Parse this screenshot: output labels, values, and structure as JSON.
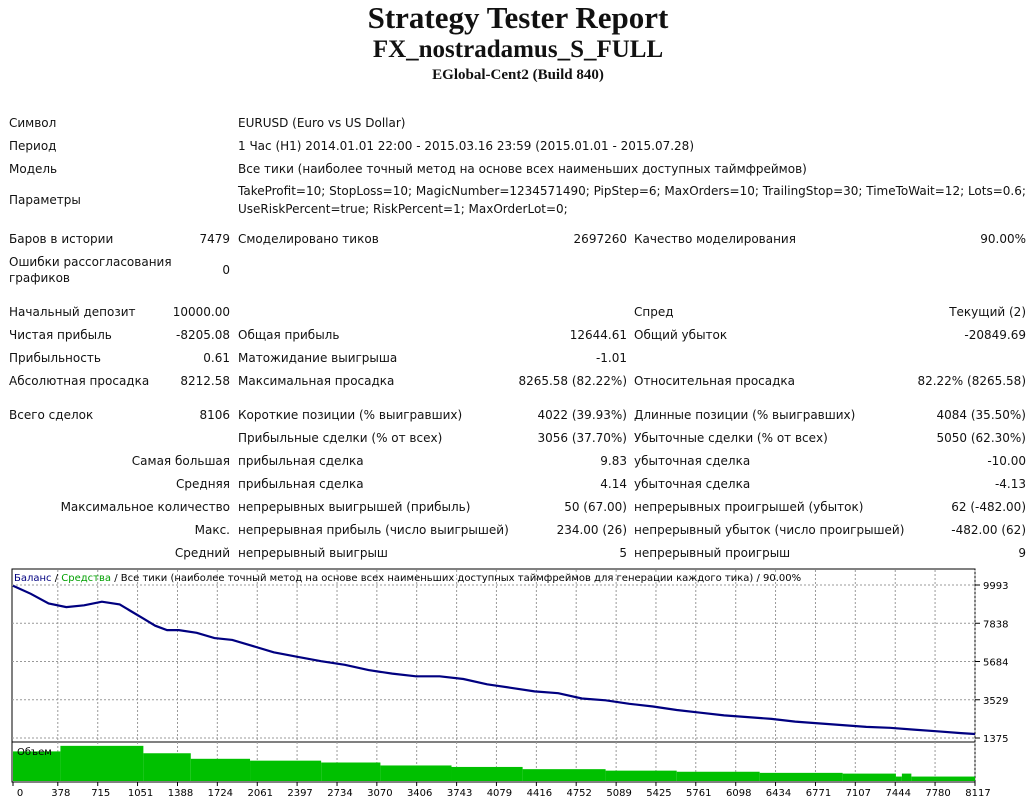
{
  "header": {
    "title": "Strategy Tester Report",
    "expert": "FX_nostradamus_S_FULL",
    "server": "EGlobal-Cent2 (Build 840)"
  },
  "info": {
    "symbol_label": "Символ",
    "symbol_value": "EURUSD (Euro vs US Dollar)",
    "period_label": "Период",
    "period_value": "1 Час (H1) 2014.01.01 22:00 - 2015.03.16 23:59 (2015.01.01 - 2015.07.28)",
    "model_label": "Модель",
    "model_value": "Все тики (наиболее точный метод на основе всех наименьших доступных таймфреймов)",
    "params_label": "Параметры",
    "params_line1": "TakeProfit=10; StopLoss=10; MagicNumber=1234571490; PipStep=6; MaxOrders=10; TrailingStop=30; TimeToWait=12; Lots=0.6;",
    "params_line2": "UseRiskPercent=true; RiskPercent=1; MaxOrderLot=0;"
  },
  "stats": {
    "bars_label": "Баров в истории",
    "bars_value": "7479",
    "ticks_label": "Смоделировано тиков",
    "ticks_value": "2697260",
    "quality_label": "Качество моделирования",
    "quality_value": "90.00%",
    "mismatch_label_1": "Ошибки рассогласования",
    "mismatch_label_2": "графиков",
    "mismatch_value": "0",
    "deposit_label": "Начальный депозит",
    "deposit_value": "10000.00",
    "spread_label": "Спред",
    "spread_value": "Текущий (2)",
    "net_label": "Чистая прибыль",
    "net_value": "-8205.08",
    "gross_profit_label": "Общая прибыль",
    "gross_profit_value": "12644.61",
    "gross_loss_label": "Общий убыток",
    "gross_loss_value": "-20849.69",
    "pf_label": "Прибыльность",
    "pf_value": "0.61",
    "payoff_label": "Матожидание выигрыша",
    "payoff_value": "-1.01",
    "abs_dd_label": "Абсолютная просадка",
    "abs_dd_value": "8212.58",
    "max_dd_label": "Максимальная просадка",
    "max_dd_value": "8265.58 (82.22%)",
    "rel_dd_label": "Относительная просадка",
    "rel_dd_value": "82.22% (8265.58)",
    "trades_label": "Всего сделок",
    "trades_value": "8106",
    "short_label": "Короткие позиции (% выигравших)",
    "short_value": "4022 (39.93%)",
    "long_label": "Длинные позиции (% выигравших)",
    "long_value": "4084 (35.50%)",
    "profit_trades_label": "Прибыльные сделки (% от всех)",
    "profit_trades_value": "3056 (37.70%)",
    "loss_trades_label": "Убыточные сделки (% от всех)",
    "loss_trades_value": "5050 (62.30%)",
    "largest_label": "Самая большая",
    "largest_profit_label": "прибыльная сделка",
    "largest_profit_value": "9.83",
    "largest_loss_label": "убыточная сделка",
    "largest_loss_value": "-10.00",
    "average_label": "Средняя",
    "average_profit_label": "прибыльная сделка",
    "average_profit_value": "4.14",
    "average_loss_label": "убыточная сделка",
    "average_loss_value": "-4.13",
    "max_count_label": "Максимальное количество",
    "max_cons_wins_label": "непрерывных выигрышей (прибыль)",
    "max_cons_wins_value": "50 (67.00)",
    "max_cons_losses_label": "непрерывных проигрышей (убыток)",
    "max_cons_losses_value": "62 (-482.00)",
    "max_label": "Макс.",
    "max_cons_profit_label": "непрерывная прибыль (число выигрышей)",
    "max_cons_profit_value": "234.00 (26)",
    "max_cons_loss_label": "непрерывный убыток (число проигрышей)",
    "max_cons_loss_value": "-482.00 (62)",
    "avg_cons_label": "Средний",
    "avg_cons_wins_label": "непрерывный выигрыш",
    "avg_cons_wins_value": "5",
    "avg_cons_losses_label": "непрерывный проигрыш",
    "avg_cons_losses_value": "9"
  },
  "chart_data": {
    "type": "line",
    "legend_balance": "Баланс",
    "legend_sep1": " / ",
    "legend_equity": "Средства",
    "legend_rest": " / Все тики (наиболее точный метод на основе всех наименьших доступных таймфреймов для генерации каждого тика) / 90.00%",
    "volume_label": "Объем",
    "y_ticks": [
      9993,
      7838,
      5684,
      3529,
      1375
    ],
    "x_ticks": [
      0,
      378,
      715,
      1051,
      1388,
      1724,
      2061,
      2397,
      2734,
      3070,
      3406,
      3743,
      4079,
      4416,
      4752,
      5089,
      5425,
      5761,
      6098,
      6434,
      6771,
      7107,
      7444,
      7780,
      8117
    ],
    "ylim": [
      1375,
      9993
    ],
    "xlim": [
      0,
      8117
    ],
    "grid": true,
    "colors": {
      "balance": "#000080",
      "volume": "#00c000",
      "grid": "#999999",
      "equity": "#00a000"
    },
    "series": [
      {
        "name": "Баланс",
        "x": [
          0,
          150,
          300,
          450,
          600,
          750,
          900,
          1000,
          1100,
          1200,
          1300,
          1400,
          1550,
          1700,
          1850,
          2000,
          2200,
          2400,
          2600,
          2800,
          3000,
          3200,
          3400,
          3600,
          3800,
          4000,
          4200,
          4400,
          4600,
          4800,
          5000,
          5200,
          5400,
          5600,
          5800,
          6000,
          6200,
          6400,
          6600,
          6800,
          7000,
          7200,
          7400,
          7600,
          7800,
          8000,
          8117
        ],
        "y": [
          9950,
          9500,
          8950,
          8750,
          8850,
          9050,
          8900,
          8500,
          8100,
          7700,
          7450,
          7450,
          7300,
          7000,
          6900,
          6600,
          6200,
          5950,
          5700,
          5500,
          5200,
          5000,
          4850,
          4850,
          4700,
          4400,
          4200,
          4000,
          3900,
          3600,
          3500,
          3300,
          3150,
          2950,
          2800,
          2650,
          2550,
          2450,
          2300,
          2200,
          2100,
          2000,
          1950,
          1850,
          1750,
          1650,
          1600
        ]
      }
    ],
    "volume_steps": [
      {
        "x0": 0,
        "x1": 400,
        "v": 0.8
      },
      {
        "x0": 400,
        "x1": 1100,
        "v": 0.95
      },
      {
        "x0": 1100,
        "x1": 1500,
        "v": 0.75
      },
      {
        "x0": 1500,
        "x1": 2000,
        "v": 0.6
      },
      {
        "x0": 2000,
        "x1": 2600,
        "v": 0.55
      },
      {
        "x0": 2600,
        "x1": 3100,
        "v": 0.5
      },
      {
        "x0": 3100,
        "x1": 3700,
        "v": 0.42
      },
      {
        "x0": 3700,
        "x1": 4300,
        "v": 0.38
      },
      {
        "x0": 4300,
        "x1": 5000,
        "v": 0.32
      },
      {
        "x0": 5000,
        "x1": 5600,
        "v": 0.28
      },
      {
        "x0": 5600,
        "x1": 6300,
        "v": 0.25
      },
      {
        "x0": 6300,
        "x1": 7000,
        "v": 0.22
      },
      {
        "x0": 7000,
        "x1": 7450,
        "v": 0.2
      },
      {
        "x0": 7450,
        "x1": 7500,
        "v": 0.12
      },
      {
        "x0": 7500,
        "x1": 7580,
        "v": 0.2
      },
      {
        "x0": 7580,
        "x1": 8117,
        "v": 0.12
      }
    ]
  }
}
